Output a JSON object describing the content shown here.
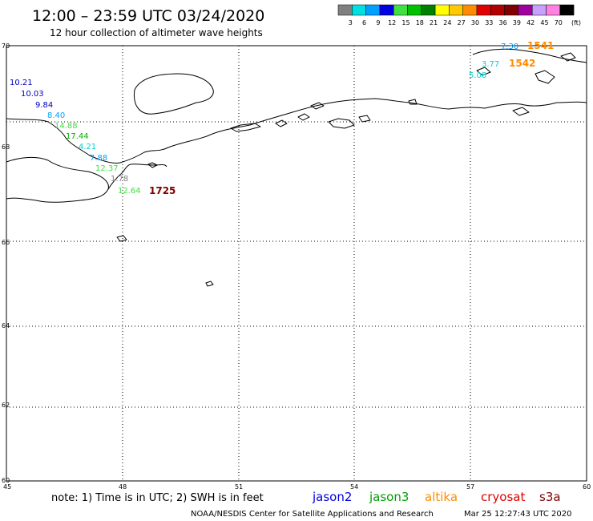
{
  "header": {
    "title": "12:00 – 23:59 UTC 03/24/2020",
    "subtitle": "12 hour collection of altimeter wave heights"
  },
  "color_scale": {
    "unit_label": "(ft)",
    "bins": [
      {
        "label": "3",
        "color": "#808080"
      },
      {
        "label": "6",
        "color": "#00e0e0"
      },
      {
        "label": "9",
        "color": "#00a0ff"
      },
      {
        "label": "12",
        "color": "#0000e0"
      },
      {
        "label": "15",
        "color": "#40e040"
      },
      {
        "label": "18",
        "color": "#00c000"
      },
      {
        "label": "21",
        "color": "#008000"
      },
      {
        "label": "24",
        "color": "#ffff00"
      },
      {
        "label": "27",
        "color": "#ffc800"
      },
      {
        "label": "30",
        "color": "#ff8c00"
      },
      {
        "label": "33",
        "color": "#e00000"
      },
      {
        "label": "36",
        "color": "#b00000"
      },
      {
        "label": "39",
        "color": "#800000"
      },
      {
        "label": "42",
        "color": "#a000a0"
      },
      {
        "label": "45",
        "color": "#c8a0ff"
      },
      {
        "label": "70",
        "color": "#ff80e0"
      },
      {
        "label": "",
        "color": "#000000"
      }
    ]
  },
  "map": {
    "lat_labels": [
      "70",
      "68",
      "66",
      "64",
      "62",
      "60"
    ],
    "lon_labels": [
      "45",
      "48",
      "51",
      "54",
      "57",
      "60"
    ],
    "wave_labels": [
      {
        "text": "10.21",
        "color": "#0000c0"
      },
      {
        "text": "10.03",
        "color": "#0000c0"
      },
      {
        "text": "9.84",
        "color": "#0000c0"
      },
      {
        "text": "8.40",
        "color": "#00a0ff"
      },
      {
        "text": "14.88",
        "color": "#40e040"
      },
      {
        "text": "17.44",
        "color": "#00b000"
      },
      {
        "text": "4.21",
        "color": "#00d0d0"
      },
      {
        "text": "7.88",
        "color": "#00a0ff"
      },
      {
        "text": "12.37",
        "color": "#40e040"
      },
      {
        "text": "1.78",
        "color": "#808080"
      },
      {
        "text": "12.64",
        "color": "#40e040"
      },
      {
        "text": "7.30",
        "color": "#00a0ff"
      },
      {
        "text": "3.77",
        "color": "#00d0d0"
      },
      {
        "text": "5.08",
        "color": "#00d0d0"
      }
    ],
    "time_labels": [
      {
        "text": "1725",
        "color": "#800000"
      },
      {
        "text": "1541",
        "color": "#ff8c00"
      },
      {
        "text": "1542",
        "color": "#ff8c00"
      }
    ]
  },
  "footer": {
    "note": "note: 1) Time is in UTC; 2) SWH is in feet",
    "satellites": [
      {
        "name": "jason2",
        "color": "#0000e0"
      },
      {
        "name": "jason3",
        "color": "#00a000"
      },
      {
        "name": "altika",
        "color": "#ff8c00"
      },
      {
        "name": "cryosat",
        "color": "#e00000"
      },
      {
        "name": "s3a",
        "color": "#800000"
      }
    ],
    "credit": "NOAA/NESDIS Center for Satellite Applications and Research",
    "timestamp": "Mar 25 12:27:43 UTC 2020"
  }
}
